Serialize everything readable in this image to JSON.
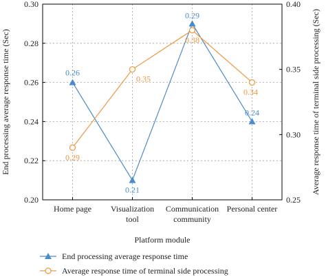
{
  "chart_data": {
    "type": "line",
    "xlabel": "Platform module",
    "ylabel_left": "End processing average response time (Sec)",
    "ylabel_right": "Average response time of terminal side processing (Sec)",
    "categories": [
      [
        "Home page"
      ],
      [
        "Visualization",
        "tool"
      ],
      [
        "Communication",
        "community"
      ],
      [
        "Personal center"
      ]
    ],
    "y_left": {
      "min": 0.2,
      "max": 0.3,
      "ticks": [
        "0.20",
        "0.22",
        "0.24",
        "0.26",
        "0.28",
        "0.30"
      ]
    },
    "y_right": {
      "min": 0.25,
      "max": 0.4,
      "ticks": [
        "0.25",
        "0.30",
        "0.35",
        "0.40"
      ]
    },
    "grid": true,
    "legend_position": "bottom",
    "series": [
      {
        "name": "End processing average response time",
        "axis": "left",
        "marker": "triangle",
        "color": "#4a8bc9",
        "values": [
          0.26,
          0.21,
          0.29,
          0.24
        ],
        "labels": [
          "0.26",
          "0.21",
          "0.29",
          "0.24"
        ]
      },
      {
        "name": "Average response time of terminal side processing",
        "axis": "right",
        "marker": "circle",
        "color": "#f0963c",
        "values": [
          0.29,
          0.35,
          0.38,
          0.34
        ],
        "labels": [
          "0.29",
          "0.35",
          "0.38",
          "0.34"
        ]
      }
    ]
  }
}
